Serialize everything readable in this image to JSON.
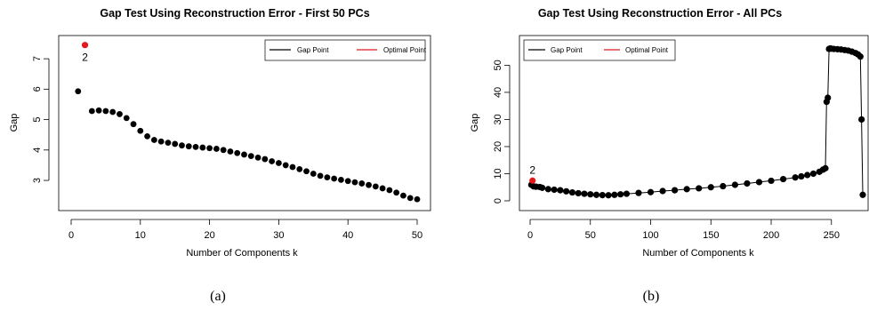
{
  "chart_data": [
    {
      "type": "scatter",
      "panel": "(a)",
      "title": "Gap Test Using Reconstruction Error - First 50 PCs",
      "xlabel": "Number of Components k",
      "ylabel": "Gap",
      "xlim": [
        0,
        50
      ],
      "ylim": [
        2.3,
        7.5
      ],
      "xticks": [
        0,
        10,
        20,
        30,
        40,
        50
      ],
      "yticks": [
        3,
        4,
        5,
        6,
        7
      ],
      "legend": {
        "placement": "top-right",
        "entries": [
          {
            "label": "Gap Point",
            "color": "#000000"
          },
          {
            "label": "Optimal Point",
            "color": "#e31a1c"
          }
        ]
      },
      "annotation": {
        "text": "2",
        "x": 2
      },
      "optimal": {
        "x": 2,
        "y": 7.45
      },
      "series": [
        {
          "name": "Gap Point",
          "color": "#000000",
          "x": [
            1,
            3,
            4,
            5,
            6,
            7,
            8,
            9,
            10,
            11,
            12,
            13,
            14,
            15,
            16,
            17,
            18,
            19,
            20,
            21,
            22,
            23,
            24,
            25,
            26,
            27,
            28,
            29,
            30,
            31,
            32,
            33,
            34,
            35,
            36,
            37,
            38,
            39,
            40,
            41,
            42,
            43,
            44,
            45,
            46,
            47,
            48,
            49,
            50
          ],
          "y": [
            5.93,
            5.28,
            5.3,
            5.28,
            5.25,
            5.18,
            5.05,
            4.85,
            4.63,
            4.45,
            4.33,
            4.28,
            4.24,
            4.2,
            4.15,
            4.12,
            4.1,
            4.08,
            4.06,
            4.04,
            4.0,
            3.95,
            3.9,
            3.85,
            3.8,
            3.75,
            3.7,
            3.63,
            3.57,
            3.5,
            3.44,
            3.37,
            3.3,
            3.22,
            3.15,
            3.1,
            3.06,
            3.02,
            2.98,
            2.94,
            2.9,
            2.85,
            2.8,
            2.74,
            2.68,
            2.6,
            2.5,
            2.42,
            2.38
          ]
        }
      ]
    },
    {
      "type": "line",
      "panel": "(b)",
      "title": "Gap Test Using Reconstruction Error - All PCs",
      "xlabel": "Number of Components k",
      "ylabel": "Gap",
      "xlim": [
        0,
        276
      ],
      "ylim": [
        0,
        58
      ],
      "xticks": [
        0,
        50,
        100,
        150,
        200,
        250
      ],
      "yticks": [
        0,
        10,
        20,
        30,
        40,
        50
      ],
      "legend": {
        "placement": "top-left",
        "entries": [
          {
            "label": "Gap Point",
            "color": "#000000"
          },
          {
            "label": "Optimal Point",
            "color": "#e31a1c"
          }
        ]
      },
      "annotation": {
        "text": "2",
        "x": 2
      },
      "optimal": {
        "x": 2,
        "y": 7.45
      },
      "series": [
        {
          "name": "Gap Point",
          "color": "#000000",
          "x": [
            1,
            3,
            5,
            8,
            10,
            15,
            20,
            25,
            30,
            35,
            40,
            45,
            50,
            55,
            60,
            65,
            70,
            75,
            80,
            90,
            100,
            110,
            120,
            130,
            140,
            150,
            160,
            170,
            180,
            190,
            200,
            210,
            220,
            225,
            230,
            235,
            240,
            243,
            245,
            246,
            247,
            248,
            249,
            250,
            252,
            255,
            258,
            261,
            264,
            267,
            270,
            272,
            274,
            275,
            276
          ],
          "y": [
            5.9,
            5.3,
            5.2,
            5.1,
            4.8,
            4.3,
            4.1,
            3.9,
            3.5,
            3.1,
            2.8,
            2.6,
            2.4,
            2.2,
            2.1,
            2.05,
            2.2,
            2.4,
            2.6,
            2.9,
            3.2,
            3.6,
            3.9,
            4.3,
            4.6,
            5.0,
            5.4,
            5.9,
            6.4,
            6.9,
            7.4,
            8.0,
            8.6,
            9.0,
            9.5,
            10.0,
            10.7,
            11.5,
            12.0,
            36.5,
            38.0,
            56.0,
            56.2,
            56.1,
            56.0,
            55.9,
            55.8,
            55.6,
            55.4,
            55.0,
            54.5,
            54.0,
            53.2,
            30.0,
            2.2
          ]
        }
      ]
    }
  ]
}
